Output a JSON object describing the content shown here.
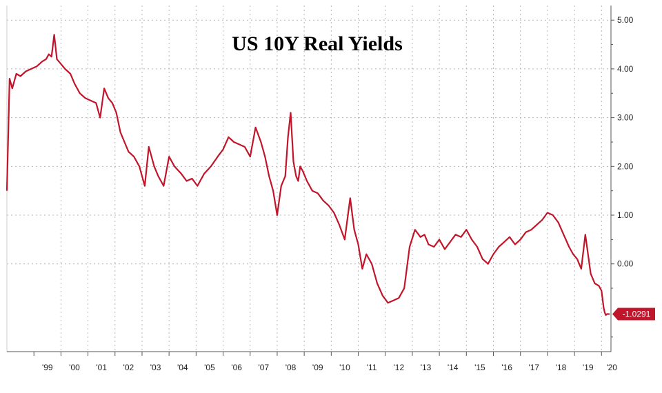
{
  "chart_data": {
    "type": "line",
    "title": "US 10Y Real Yields",
    "xlabel": "",
    "ylabel": "",
    "x_ticks": [
      "'99",
      "'00",
      "'01",
      "'02",
      "'03",
      "'04",
      "'05",
      "'06",
      "'07",
      "'08",
      "'09",
      "'10",
      "'11",
      "'12",
      "'13",
      "'14",
      "'15",
      "'16",
      "'17",
      "'18",
      "'19",
      "'20"
    ],
    "y_ticks": [
      "5.00",
      "4.00",
      "3.00",
      "2.00",
      "1.00",
      "0.00"
    ],
    "ylim": [
      -1.8,
      5.3
    ],
    "xlim": [
      1998.0,
      2020.35
    ],
    "grid": true,
    "y_axis_side": "right",
    "last_value_label": "-1.0291",
    "colors": {
      "line": "#c0152a",
      "grid": "#b5b5b5",
      "axis": "#555555",
      "label_bg": "#c0152a",
      "label_text": "#ffffff"
    },
    "series": [
      {
        "x": [
          1998.0,
          1998.1,
          1998.2,
          1998.35,
          1998.5,
          1998.7,
          1998.9,
          1999.1,
          1999.3,
          1999.45,
          1999.55,
          1999.65,
          1999.75,
          1999.85,
          2000.0,
          2000.15,
          2000.35,
          2000.5,
          2000.7,
          2000.9,
          2001.1,
          2001.3,
          2001.45,
          2001.6,
          2001.75,
          2001.9,
          2002.05,
          2002.2,
          2002.35,
          2002.5,
          2002.7,
          2002.9,
          2003.1,
          2003.25,
          2003.45,
          2003.6,
          2003.8,
          2004.0,
          2004.2,
          2004.45,
          2004.65,
          2004.85,
          2005.05,
          2005.3,
          2005.55,
          2005.8,
          2006.0,
          2006.2,
          2006.4,
          2006.6,
          2006.8,
          2007.0,
          2007.2,
          2007.4,
          2007.55,
          2007.7,
          2007.85,
          2008.0,
          2008.15,
          2008.3,
          2008.4,
          2008.5,
          2008.6,
          2008.7,
          2008.78,
          2008.85,
          2008.95,
          2009.1,
          2009.3,
          2009.5,
          2009.7,
          2009.9,
          2010.1,
          2010.3,
          2010.5,
          2010.7,
          2010.85,
          2011.0,
          2011.15,
          2011.3,
          2011.5,
          2011.7,
          2011.9,
          2012.1,
          2012.3,
          2012.5,
          2012.7,
          2012.9,
          2013.1,
          2013.3,
          2013.45,
          2013.6,
          2013.8,
          2014.0,
          2014.2,
          2014.4,
          2014.6,
          2014.8,
          2015.0,
          2015.2,
          2015.4,
          2015.6,
          2015.8,
          2016.0,
          2016.2,
          2016.4,
          2016.6,
          2016.8,
          2017.0,
          2017.2,
          2017.4,
          2017.6,
          2017.8,
          2018.0,
          2018.2,
          2018.4,
          2018.6,
          2018.8,
          2018.95,
          2019.1,
          2019.25,
          2019.4,
          2019.6,
          2019.75,
          2019.9,
          2020.0,
          2020.08,
          2020.12,
          2020.16,
          2020.2,
          2020.25,
          2020.3
        ],
        "y": [
          1.5,
          3.8,
          3.6,
          3.9,
          3.85,
          3.95,
          4.0,
          4.05,
          4.15,
          4.2,
          4.3,
          4.25,
          4.7,
          4.2,
          4.1,
          4.0,
          3.9,
          3.7,
          3.5,
          3.4,
          3.35,
          3.3,
          3.0,
          3.6,
          3.4,
          3.3,
          3.1,
          2.7,
          2.5,
          2.3,
          2.2,
          2.0,
          1.6,
          2.4,
          2.0,
          1.8,
          1.6,
          2.2,
          2.0,
          1.85,
          1.7,
          1.75,
          1.6,
          1.85,
          2.0,
          2.2,
          2.35,
          2.6,
          2.5,
          2.45,
          2.4,
          2.2,
          2.8,
          2.5,
          2.2,
          1.8,
          1.5,
          1.0,
          1.6,
          1.8,
          2.6,
          3.1,
          2.1,
          1.8,
          1.7,
          2.0,
          1.9,
          1.7,
          1.5,
          1.45,
          1.3,
          1.2,
          1.05,
          0.8,
          0.5,
          1.35,
          0.7,
          0.4,
          -0.1,
          0.2,
          0.0,
          -0.4,
          -0.65,
          -0.8,
          -0.75,
          -0.7,
          -0.5,
          0.35,
          0.7,
          0.55,
          0.6,
          0.4,
          0.35,
          0.5,
          0.3,
          0.45,
          0.6,
          0.55,
          0.7,
          0.5,
          0.35,
          0.1,
          0.0,
          0.2,
          0.35,
          0.45,
          0.55,
          0.4,
          0.5,
          0.65,
          0.7,
          0.8,
          0.9,
          1.05,
          1.0,
          0.85,
          0.6,
          0.35,
          0.2,
          0.1,
          -0.1,
          0.6,
          -0.2,
          -0.4,
          -0.45,
          -0.55,
          -0.9,
          -1.0,
          -1.05,
          -1.0291,
          -1.0291,
          -1.0291
        ]
      }
    ]
  }
}
